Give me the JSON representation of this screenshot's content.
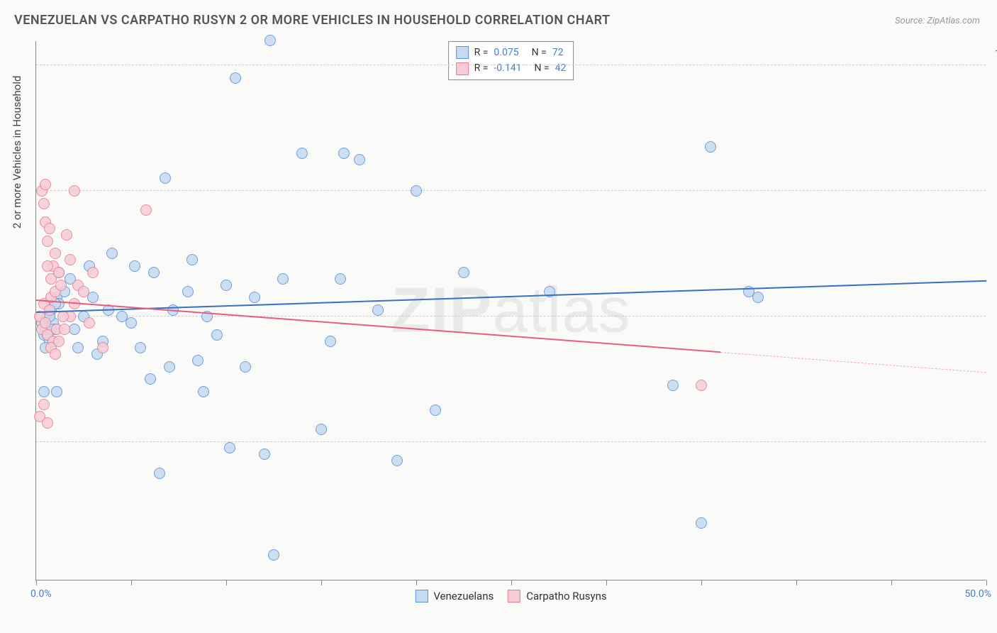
{
  "title": "VENEZUELAN VS CARPATHO RUSYN 2 OR MORE VEHICLES IN HOUSEHOLD CORRELATION CHART",
  "source": "Source: ZipAtlas.com",
  "watermark": {
    "prefix": "ZIP",
    "suffix": "atlas"
  },
  "chart": {
    "type": "scatter",
    "y_axis": {
      "title": "2 or more Vehicles in Household",
      "min": 18,
      "max": 104,
      "ticks": [
        40,
        60,
        80,
        100
      ],
      "tick_label_suffix": ".0%",
      "label_color": "#4a7bc8",
      "title_color": "#444",
      "title_fontsize": 15,
      "label_fontsize": 14,
      "grid_color": "#cccccc"
    },
    "x_axis": {
      "min": 0,
      "max": 50,
      "ticks": [
        0,
        5,
        10,
        15,
        20,
        25,
        30,
        35,
        40,
        45,
        50
      ],
      "labeled_ticks": {
        "0": "0.0%",
        "50": "50.0%"
      },
      "label_color": "#4a7bc8"
    },
    "series": [
      {
        "name": "Venezuelans",
        "fill_color": "#c5dbf2",
        "stroke_color": "#5b8fd6",
        "marker_radius": 8,
        "marker_opacity": 0.85,
        "correlation": {
          "R": "0.075",
          "N": "72"
        },
        "trend": {
          "y_at_xmin": 60.5,
          "y_at_xmax": 65.5,
          "line_color": "#3b6fc4",
          "line_width": 2,
          "x_solid_end": 50
        },
        "points": [
          [
            0.3,
            59
          ],
          [
            0.4,
            57
          ],
          [
            0.5,
            58
          ],
          [
            0.6,
            60
          ],
          [
            0.7,
            56
          ],
          [
            0.8,
            61
          ],
          [
            0.9,
            59
          ],
          [
            1.0,
            58
          ],
          [
            1.1,
            63
          ],
          [
            1.2,
            62
          ],
          [
            0.5,
            55
          ],
          [
            0.6,
            57
          ],
          [
            0.7,
            60
          ],
          [
            0.8,
            58
          ],
          [
            0.9,
            56
          ],
          [
            1.0,
            62
          ],
          [
            1.1,
            48
          ],
          [
            0.4,
            48
          ],
          [
            1.2,
            67
          ],
          [
            1.5,
            64
          ],
          [
            1.8,
            66
          ],
          [
            2.0,
            58
          ],
          [
            2.2,
            55
          ],
          [
            2.5,
            60
          ],
          [
            2.8,
            68
          ],
          [
            3.0,
            63
          ],
          [
            3.2,
            54
          ],
          [
            3.5,
            56
          ],
          [
            3.8,
            61
          ],
          [
            4.0,
            70
          ],
          [
            4.5,
            60
          ],
          [
            5.0,
            59
          ],
          [
            5.5,
            55
          ],
          [
            5.2,
            68
          ],
          [
            6.0,
            50
          ],
          [
            6.2,
            67
          ],
          [
            6.5,
            35
          ],
          [
            6.8,
            82
          ],
          [
            7.0,
            52
          ],
          [
            7.2,
            61
          ],
          [
            8.0,
            64
          ],
          [
            8.2,
            69
          ],
          [
            8.5,
            53
          ],
          [
            8.8,
            48
          ],
          [
            9.0,
            60
          ],
          [
            9.5,
            57
          ],
          [
            10.0,
            65
          ],
          [
            10.2,
            39
          ],
          [
            10.5,
            98
          ],
          [
            11.0,
            52
          ],
          [
            11.5,
            63
          ],
          [
            12.0,
            38
          ],
          [
            12.3,
            104
          ],
          [
            12.5,
            22
          ],
          [
            13.0,
            66
          ],
          [
            14.0,
            86
          ],
          [
            15.0,
            42
          ],
          [
            15.5,
            56
          ],
          [
            16.0,
            66
          ],
          [
            16.2,
            86
          ],
          [
            17.0,
            85
          ],
          [
            18.0,
            61
          ],
          [
            19.0,
            37
          ],
          [
            20.0,
            80
          ],
          [
            21.0,
            45
          ],
          [
            22.5,
            67
          ],
          [
            27.0,
            64
          ],
          [
            33.5,
            49
          ],
          [
            35.0,
            27
          ],
          [
            35.5,
            87
          ],
          [
            37.5,
            64
          ],
          [
            38.0,
            63
          ]
        ]
      },
      {
        "name": "Carpatho Rusyns",
        "fill_color": "#f6cdd6",
        "stroke_color": "#e77b95",
        "marker_radius": 8,
        "marker_opacity": 0.85,
        "correlation": {
          "R": "-0.141",
          "N": "42"
        },
        "trend": {
          "y_at_xmin": 62.5,
          "y_at_xmax": 51.0,
          "line_color": "#e75d7e",
          "line_width": 2,
          "x_solid_end": 36
        },
        "points": [
          [
            0.2,
            60
          ],
          [
            0.3,
            58
          ],
          [
            0.4,
            62
          ],
          [
            0.5,
            59
          ],
          [
            0.6,
            57
          ],
          [
            0.7,
            61
          ],
          [
            0.8,
            63
          ],
          [
            0.9,
            56
          ],
          [
            1.0,
            64
          ],
          [
            1.1,
            58
          ],
          [
            0.3,
            80
          ],
          [
            0.4,
            78
          ],
          [
            0.5,
            75
          ],
          [
            0.6,
            72
          ],
          [
            0.7,
            74
          ],
          [
            0.8,
            66
          ],
          [
            0.9,
            68
          ],
          [
            1.0,
            70
          ],
          [
            1.2,
            67
          ],
          [
            1.3,
            65
          ],
          [
            0.2,
            44
          ],
          [
            0.4,
            46
          ],
          [
            0.6,
            43
          ],
          [
            0.8,
            55
          ],
          [
            1.0,
            54
          ],
          [
            1.2,
            56
          ],
          [
            1.5,
            58
          ],
          [
            1.8,
            60
          ],
          [
            2.0,
            62
          ],
          [
            2.2,
            65
          ],
          [
            2.5,
            64
          ],
          [
            2.8,
            59
          ],
          [
            3.0,
            67
          ],
          [
            3.5,
            55
          ],
          [
            1.6,
            73
          ],
          [
            1.8,
            69
          ],
          [
            2.0,
            80
          ],
          [
            0.5,
            81
          ],
          [
            5.8,
            77
          ],
          [
            35.0,
            49
          ],
          [
            1.4,
            60
          ],
          [
            0.6,
            68
          ]
        ]
      }
    ],
    "legend_top": {
      "border_color": "#888888",
      "bg_color": "#ffffff",
      "text_color_label": "#333333",
      "text_color_value": "#4a7bc8"
    },
    "legend_bottom": {
      "items": [
        "Venezuelans",
        "Carpatho Rusyns"
      ]
    },
    "background_color": "#fafaf8",
    "axis_color": "#888888"
  }
}
